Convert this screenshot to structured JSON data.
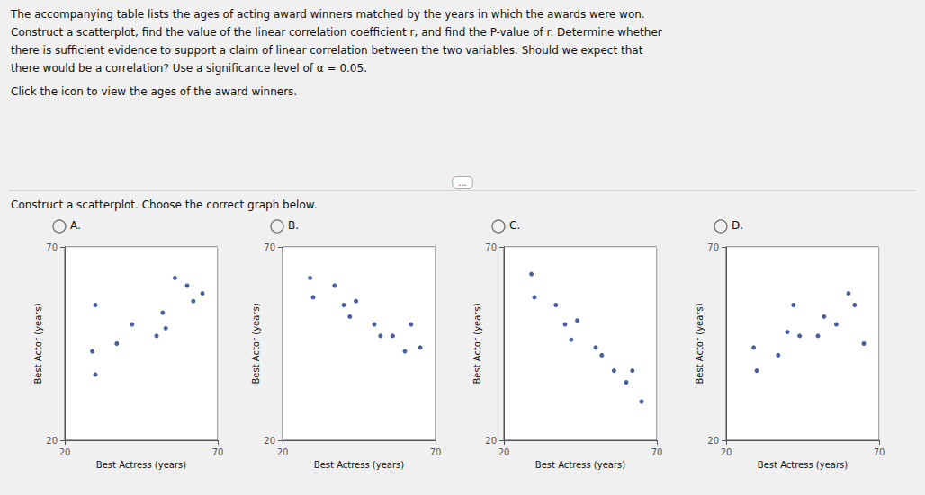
{
  "annotations": [
    "The accompanying table lists the ages of acting award winners matched by the years in which the awards were won.",
    "Construct a scatterplot, find the value of the linear correlation coefficient r, and find the P-value of r. Determine whether",
    "there is sufficient evidence to support a claim of linear correlation between the two variables. Should we expect that",
    "there would be a correlation? Use a significance level of α = 0.05.",
    "Click the icon to view the ages of the award winners.",
    "...",
    "Construct a scatterplot. Choose the correct graph below."
  ],
  "chart_data": [
    {
      "type": "scatter",
      "title": "A.",
      "xlabel": "Best Actress (years)",
      "ylabel": "Best Actor (years)",
      "x": [
        29,
        30,
        30,
        37,
        42,
        50,
        52,
        53,
        56,
        60,
        62,
        65
      ],
      "values": [
        43,
        37,
        55,
        45,
        50,
        47,
        53,
        49,
        62,
        60,
        56,
        58
      ],
      "xlim": [
        20,
        70
      ],
      "ylim": [
        20,
        70
      ],
      "xticks": [
        20,
        70
      ],
      "yticks": [
        20,
        70
      ],
      "grid": true,
      "color": "#1a3a8a"
    },
    {
      "type": "scatter",
      "title": "B.",
      "xlabel": "Best Actress (years)",
      "ylabel": "Best Actor (years)",
      "x": [
        29,
        30,
        37,
        40,
        42,
        44,
        50,
        52,
        56,
        60,
        62,
        65
      ],
      "values": [
        62,
        57,
        60,
        55,
        52,
        56,
        50,
        47,
        47,
        43,
        50,
        44
      ],
      "xlim": [
        20,
        70
      ],
      "ylim": [
        20,
        70
      ],
      "xticks": [
        20,
        70
      ],
      "yticks": [
        20,
        70
      ],
      "grid": true,
      "color": "#1a3a8a"
    },
    {
      "type": "scatter",
      "title": "C.",
      "xlabel": "Best Actress (years)",
      "ylabel": "Best Actor (years)",
      "x": [
        29,
        30,
        37,
        40,
        42,
        44,
        50,
        52,
        56,
        60,
        62,
        65
      ],
      "values": [
        63,
        57,
        55,
        50,
        46,
        51,
        44,
        42,
        38,
        35,
        38,
        30
      ],
      "xlim": [
        20,
        70
      ],
      "ylim": [
        20,
        70
      ],
      "xticks": [
        20,
        70
      ],
      "yticks": [
        20,
        70
      ],
      "grid": true,
      "color": "#1a3a8a"
    },
    {
      "type": "scatter",
      "title": "D.",
      "xlabel": "Best Actress (years)",
      "ylabel": "Best Actor (years)",
      "x": [
        29,
        30,
        37,
        40,
        42,
        44,
        50,
        52,
        56,
        60,
        62,
        65
      ],
      "values": [
        44,
        38,
        42,
        48,
        55,
        47,
        47,
        52,
        50,
        58,
        55,
        45
      ],
      "xlim": [
        20,
        70
      ],
      "ylim": [
        20,
        70
      ],
      "xticks": [
        20,
        70
      ],
      "yticks": [
        20,
        70
      ],
      "grid": true,
      "color": "#1a3a8a"
    }
  ]
}
